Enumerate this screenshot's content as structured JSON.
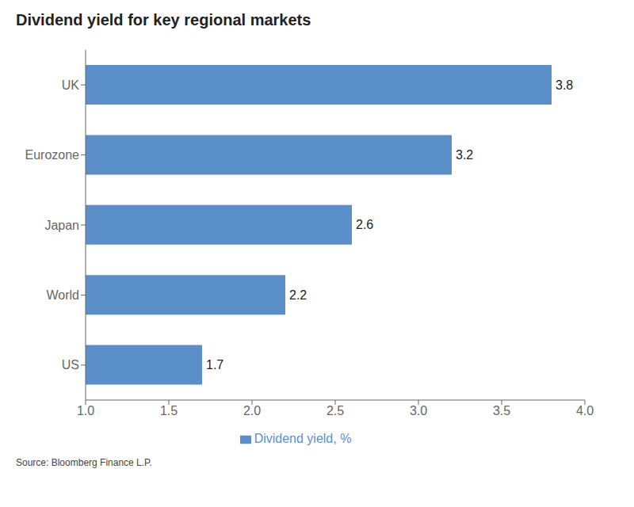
{
  "chart_data": {
    "type": "bar",
    "orientation": "horizontal",
    "title": "Dividend yield for key regional markets",
    "categories": [
      "US",
      "World",
      "Japan",
      "Eurozone",
      "UK"
    ],
    "series": [
      {
        "name": "Dividend yield, %",
        "color": "#5b8fc9",
        "values": [
          1.7,
          2.2,
          2.6,
          3.2,
          3.8
        ]
      }
    ],
    "xlim": [
      1.0,
      4.0
    ],
    "xticks": [
      {
        "value": 1.0,
        "label": "1.0"
      },
      1.5,
      {
        "value": 2.0,
        "label": "2.0"
      },
      2.5,
      {
        "value": 3.0,
        "label": "3.0"
      },
      3.5,
      {
        "value": 4.0,
        "label": "4.0"
      }
    ],
    "data_labels": true,
    "grid": false,
    "legend": "bottom",
    "annotations": [
      "Source: Bloomberg Finance L.P."
    ]
  }
}
